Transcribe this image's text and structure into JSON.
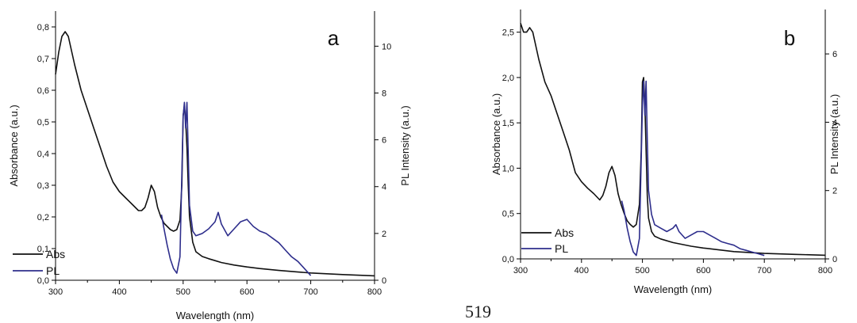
{
  "page_number": "519",
  "chart_data": [
    {
      "type": "line",
      "panel_label": "a",
      "xlabel": "Wavelength (nm)",
      "ylabel": "Absorbance (a.u.)",
      "y2label": "PL Intensity (a.u.)",
      "xlim": [
        300,
        800
      ],
      "ylim": [
        0,
        0.85
      ],
      "y2lim": [
        0,
        11.5
      ],
      "x_ticks": [
        300,
        400,
        500,
        600,
        700,
        800
      ],
      "y_ticks": [
        0.0,
        0.1,
        0.2,
        0.3,
        0.4,
        0.5,
        0.6,
        0.7,
        0.8
      ],
      "y_tick_labels": [
        "0,0",
        "0,1",
        "0,2",
        "0,3",
        "0,4",
        "0,5",
        "0,6",
        "0,7",
        "0,8"
      ],
      "y2_ticks": [
        0,
        2,
        4,
        6,
        8,
        10
      ],
      "legend": "bottom-left",
      "grid": false,
      "series": [
        {
          "name": "Abs",
          "axis": "left",
          "color": "#111111",
          "x": [
            300,
            305,
            310,
            315,
            320,
            330,
            340,
            350,
            360,
            370,
            380,
            390,
            400,
            410,
            420,
            430,
            435,
            440,
            445,
            450,
            455,
            460,
            465,
            470,
            475,
            480,
            485,
            490,
            495,
            498,
            500,
            502,
            504,
            506,
            508,
            510,
            515,
            520,
            530,
            540,
            550,
            560,
            580,
            600,
            620,
            650,
            680,
            700,
            750,
            800
          ],
          "y": [
            0.65,
            0.72,
            0.77,
            0.785,
            0.77,
            0.68,
            0.6,
            0.54,
            0.48,
            0.42,
            0.36,
            0.31,
            0.28,
            0.26,
            0.24,
            0.22,
            0.22,
            0.23,
            0.26,
            0.3,
            0.28,
            0.23,
            0.2,
            0.18,
            0.17,
            0.16,
            0.155,
            0.16,
            0.19,
            0.3,
            0.52,
            0.55,
            0.5,
            0.42,
            0.3,
            0.2,
            0.12,
            0.09,
            0.075,
            0.068,
            0.062,
            0.056,
            0.048,
            0.042,
            0.037,
            0.031,
            0.026,
            0.023,
            0.018,
            0.014
          ]
        },
        {
          "name": "PL",
          "axis": "right",
          "color": "#2e2e8c",
          "x": [
            466,
            470,
            475,
            480,
            485,
            490,
            495,
            500,
            502,
            504,
            506,
            508,
            510,
            515,
            520,
            530,
            540,
            550,
            555,
            560,
            570,
            580,
            590,
            600,
            610,
            620,
            630,
            640,
            650,
            660,
            670,
            680,
            690,
            700
          ],
          "y": [
            2.8,
            2.2,
            1.5,
            0.9,
            0.5,
            0.3,
            1.0,
            7.0,
            7.6,
            6.5,
            7.6,
            5.5,
            3.2,
            2.1,
            1.9,
            2.0,
            2.2,
            2.5,
            2.9,
            2.4,
            1.9,
            2.2,
            2.5,
            2.6,
            2.3,
            2.1,
            2.0,
            1.8,
            1.6,
            1.3,
            1.0,
            0.8,
            0.5,
            0.2
          ]
        }
      ]
    },
    {
      "type": "line",
      "panel_label": "b",
      "xlabel": "Wavelength (nm)",
      "ylabel": "Absorbance (a.u.)",
      "y2label": "PL Intensity (a.u.)",
      "xlim": [
        300,
        800
      ],
      "ylim": [
        0,
        2.75
      ],
      "y2lim": [
        0,
        7.3
      ],
      "x_ticks": [
        300,
        400,
        500,
        600,
        700,
        800
      ],
      "y_ticks": [
        0.0,
        0.5,
        1.0,
        1.5,
        2.0,
        2.5
      ],
      "y_tick_labels": [
        "0,0",
        "0,5",
        "1,0",
        "1,5",
        "2,0",
        "2,5"
      ],
      "y2_ticks": [
        0,
        2,
        4,
        6
      ],
      "legend": "bottom-left",
      "grid": false,
      "series": [
        {
          "name": "Abs",
          "axis": "left",
          "color": "#111111",
          "x": [
            300,
            305,
            310,
            315,
            320,
            330,
            340,
            350,
            360,
            370,
            380,
            390,
            400,
            410,
            420,
            430,
            435,
            440,
            445,
            450,
            455,
            460,
            465,
            470,
            475,
            480,
            485,
            490,
            495,
            498,
            500,
            502,
            504,
            506,
            508,
            510,
            515,
            520,
            530,
            550,
            580,
            600,
            650,
            700,
            750,
            800
          ],
          "y": [
            2.6,
            2.5,
            2.5,
            2.55,
            2.5,
            2.2,
            1.95,
            1.8,
            1.6,
            1.4,
            1.2,
            0.95,
            0.85,
            0.78,
            0.72,
            0.65,
            0.7,
            0.8,
            0.95,
            1.02,
            0.92,
            0.72,
            0.6,
            0.5,
            0.42,
            0.38,
            0.35,
            0.38,
            0.6,
            1.2,
            1.95,
            2.0,
            1.7,
            1.2,
            0.7,
            0.45,
            0.3,
            0.25,
            0.22,
            0.18,
            0.14,
            0.12,
            0.08,
            0.06,
            0.05,
            0.04
          ]
        },
        {
          "name": "PL",
          "axis": "right",
          "color": "#2e2e8c",
          "x": [
            466,
            470,
            475,
            480,
            485,
            490,
            495,
            500,
            502,
            504,
            506,
            508,
            510,
            515,
            520,
            530,
            540,
            550,
            555,
            560,
            570,
            580,
            590,
            600,
            610,
            620,
            630,
            640,
            650,
            660,
            670,
            680,
            690,
            700
          ],
          "y": [
            1.7,
            1.4,
            0.9,
            0.5,
            0.2,
            0.1,
            0.6,
            4.5,
            5.2,
            4.2,
            5.2,
            3.5,
            2.0,
            1.3,
            1.0,
            0.9,
            0.8,
            0.9,
            1.0,
            0.8,
            0.6,
            0.7,
            0.8,
            0.8,
            0.7,
            0.6,
            0.5,
            0.45,
            0.4,
            0.3,
            0.25,
            0.2,
            0.15,
            0.1
          ]
        }
      ]
    }
  ]
}
